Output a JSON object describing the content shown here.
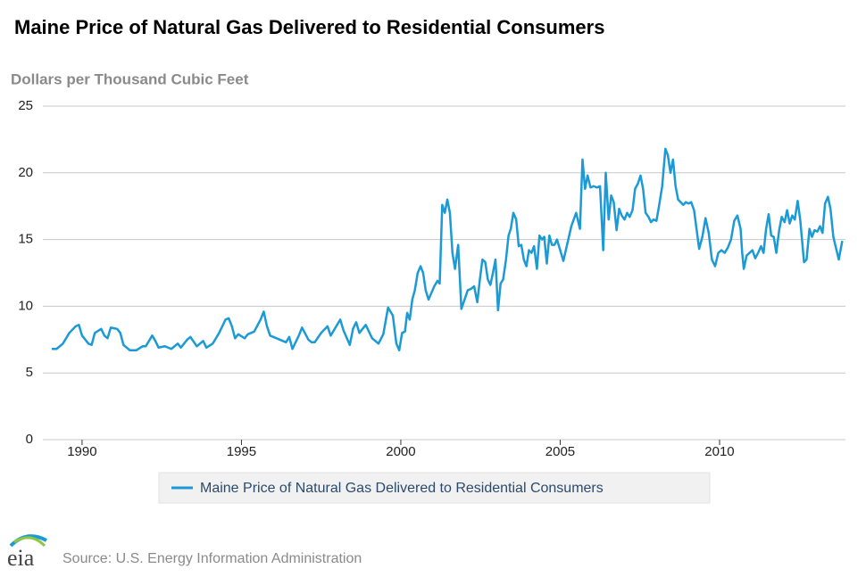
{
  "chart_data": {
    "type": "line",
    "title": "Maine Price of Natural Gas Delivered to Residential Consumers",
    "y_label": "Dollars per Thousand Cubic Feet",
    "source": "Source: U.S. Energy Information Administration",
    "logo": "eia",
    "xlim": [
      1988.77,
      2013.95
    ],
    "xticks": [
      1990,
      1995,
      2000,
      2005,
      2010
    ],
    "ylim": [
      0,
      25
    ],
    "yticks": [
      0,
      5,
      10,
      15,
      20,
      25
    ],
    "grid": true,
    "x": [
      1989.05,
      1989.2,
      1989.4,
      1989.6,
      1989.8,
      1989.9,
      1990.0,
      1990.2,
      1990.3,
      1990.4,
      1990.6,
      1990.7,
      1990.8,
      1990.9,
      1991.1,
      1991.2,
      1991.3,
      1991.5,
      1991.7,
      1991.9,
      1992.0,
      1992.2,
      1992.3,
      1992.4,
      1992.6,
      1992.8,
      1993.0,
      1993.1,
      1993.3,
      1993.4,
      1993.6,
      1993.8,
      1993.9,
      1994.1,
      1994.3,
      1994.5,
      1994.6,
      1994.7,
      1994.8,
      1994.9,
      1995.1,
      1995.2,
      1995.4,
      1995.6,
      1995.7,
      1995.8,
      1995.9,
      1996.0,
      1996.2,
      1996.4,
      1996.5,
      1996.6,
      1996.8,
      1996.9,
      1997.1,
      1997.2,
      1997.3,
      1997.5,
      1997.7,
      1997.8,
      1998.0,
      1998.1,
      1998.2,
      1998.4,
      1998.5,
      1998.6,
      1998.7,
      1998.9,
      1999.1,
      1999.3,
      1999.45,
      1999.6,
      1999.75,
      1999.86,
      1999.95,
      2000.04,
      2000.13,
      2000.2,
      2000.28,
      2000.36,
      2000.44,
      2000.53,
      2000.62,
      2000.7,
      2000.78,
      2000.87,
      2000.96,
      2001.05,
      2001.15,
      2001.22,
      2001.3,
      2001.38,
      2001.46,
      2001.54,
      2001.62,
      2001.7,
      2001.8,
      2001.9,
      2002.0,
      2002.1,
      2002.2,
      2002.3,
      2002.4,
      2002.48,
      2002.56,
      2002.65,
      2002.73,
      2002.81,
      2002.89,
      2002.97,
      2003.05,
      2003.13,
      2003.21,
      2003.3,
      2003.38,
      2003.45,
      2003.53,
      2003.62,
      2003.7,
      2003.78,
      2003.86,
      2003.94,
      2004.02,
      2004.1,
      2004.18,
      2004.27,
      2004.35,
      2004.43,
      2004.5,
      2004.58,
      2004.66,
      2004.74,
      2004.82,
      2004.9,
      2005.1,
      2005.35,
      2005.5,
      2005.62,
      2005.7,
      2005.78,
      2005.86,
      2005.95,
      2006.05,
      2006.15,
      2006.25,
      2006.35,
      2006.43,
      2006.52,
      2006.6,
      2006.68,
      2006.77,
      2006.85,
      2006.93,
      2007.02,
      2007.1,
      2007.18,
      2007.27,
      2007.35,
      2007.44,
      2007.52,
      2007.6,
      2007.68,
      2007.77,
      2007.85,
      2007.93,
      2008.02,
      2008.1,
      2008.2,
      2008.3,
      2008.38,
      2008.46,
      2008.54,
      2008.62,
      2008.7,
      2008.78,
      2008.86,
      2008.94,
      2009.03,
      2009.11,
      2009.2,
      2009.36,
      2009.46,
      2009.56,
      2009.66,
      2009.76,
      2009.86,
      2009.96,
      2010.06,
      2010.16,
      2010.26,
      2010.36,
      2010.46,
      2010.56,
      2010.66,
      2010.71,
      2010.76,
      2010.85,
      2010.94,
      2011.03,
      2011.12,
      2011.21,
      2011.3,
      2011.38,
      2011.46,
      2011.54,
      2011.62,
      2011.7,
      2011.78,
      2011.87,
      2011.95,
      2012.04,
      2012.12,
      2012.2,
      2012.28,
      2012.36,
      2012.45,
      2012.53,
      2012.65,
      2012.73,
      2012.82,
      2012.9,
      2012.98,
      2013.07,
      2013.15,
      2013.23,
      2013.31,
      2013.4,
      2013.48,
      2013.57,
      2013.74,
      2013.85
    ],
    "series": [
      {
        "name": "Maine Price of Natural Gas Delivered to Residential Consumers",
        "color": "#1b9ad6",
        "values": [
          6.8,
          6.8,
          7.2,
          8.0,
          8.5,
          8.6,
          7.8,
          7.2,
          7.1,
          8.0,
          8.3,
          7.8,
          7.6,
          8.4,
          8.3,
          8.0,
          7.1,
          6.7,
          6.7,
          7.0,
          7.0,
          7.8,
          7.4,
          6.9,
          7.0,
          6.8,
          7.2,
          6.9,
          7.5,
          7.7,
          7.0,
          7.4,
          6.9,
          7.2,
          8.0,
          9.0,
          9.1,
          8.5,
          7.6,
          7.9,
          7.6,
          7.9,
          8.1,
          9.0,
          9.6,
          8.5,
          7.8,
          7.7,
          7.5,
          7.3,
          7.7,
          6.8,
          7.8,
          8.4,
          7.5,
          7.3,
          7.3,
          8.0,
          8.5,
          7.8,
          8.6,
          9.0,
          8.2,
          7.1,
          8.3,
          8.8,
          8.0,
          8.6,
          7.6,
          7.2,
          7.9,
          9.9,
          9.3,
          7.2,
          6.7,
          8.0,
          8.1,
          9.5,
          9.0,
          10.5,
          11.2,
          12.5,
          13.0,
          12.5,
          11.2,
          10.5,
          11.0,
          11.5,
          11.9,
          11.7,
          17.6,
          17.0,
          18.0,
          17.0,
          14.0,
          12.8,
          14.6,
          9.8,
          10.5,
          11.2,
          11.3,
          11.5,
          10.3,
          12.0,
          13.5,
          13.3,
          12.0,
          11.6,
          12.5,
          13.5,
          9.7,
          11.7,
          12.0,
          13.5,
          15.3,
          15.8,
          17.0,
          16.5,
          14.5,
          14.6,
          13.5,
          13.0,
          14.2,
          14.0,
          14.5,
          12.8,
          15.3,
          15.0,
          15.2,
          13.2,
          15.3,
          14.6,
          14.6,
          15.0,
          13.4,
          16.0,
          17.0,
          15.8,
          21.0,
          18.8,
          19.8,
          18.9,
          19.0,
          18.9,
          19.0,
          14.2,
          20.0,
          16.5,
          18.3,
          17.8,
          15.7,
          17.3,
          16.8,
          16.5,
          17.0,
          16.7,
          17.2,
          18.8,
          19.2,
          19.8,
          18.8,
          17.0,
          16.7,
          16.3,
          16.5,
          16.4,
          17.5,
          19.0,
          21.8,
          21.3,
          20.0,
          21.0,
          19.0,
          18.0,
          17.8,
          17.6,
          17.8,
          17.7,
          17.8,
          17.2,
          14.3,
          15.2,
          16.6,
          15.5,
          13.5,
          13.0,
          14.0,
          14.2,
          14.0,
          14.4,
          15.0,
          16.4,
          16.8,
          15.8,
          14.0,
          12.8,
          13.8,
          14.0,
          14.2,
          13.6,
          14.0,
          14.5,
          14.0,
          15.8,
          16.9,
          15.3,
          15.2,
          14.0,
          15.7,
          16.7,
          16.3,
          17.2,
          16.2,
          16.8,
          16.5,
          17.9,
          16.5,
          13.3,
          13.5,
          15.8,
          15.2,
          15.7,
          15.6,
          16.0,
          15.5,
          17.7,
          18.2,
          17.3,
          15.2,
          13.5,
          14.9
        ]
      }
    ]
  }
}
